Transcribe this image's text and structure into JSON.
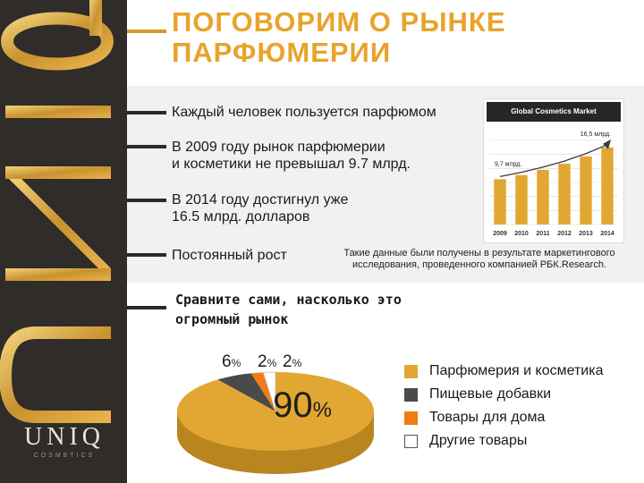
{
  "title": {
    "line1": "ПОГОВОРИМ О РЫНКЕ",
    "line2": "ПАРФЮМЕРИИ"
  },
  "facts": [
    {
      "line1": "Каждый человек пользуется парфюмом",
      "line2": ""
    },
    {
      "line1": "В 2009 году рынок парфюмерии",
      "line2": "и косметики не превышал 9.7 млрд."
    },
    {
      "line1": "В 2014 году достигнул уже",
      "line2": "16.5 млрд. долларов"
    },
    {
      "line1": "Постоянный рост",
      "line2": ""
    }
  ],
  "note": {
    "line1": "Такие данные были получены в результате маркетингового",
    "line2": "исследования, проведенного компанией РБК.Research."
  },
  "chart_data": {
    "type": "bar",
    "title": "Global Cosmetics Market",
    "categories": [
      "2009",
      "2010",
      "2011",
      "2012",
      "2013",
      "2014"
    ],
    "values": [
      9.7,
      10.6,
      11.7,
      13.0,
      14.6,
      16.5
    ],
    "annotations": [
      {
        "category": "2009",
        "text": "9,7 млрд."
      },
      {
        "category": "2014",
        "text": "16,5 млрд."
      }
    ],
    "trend_arrow": true,
    "grid": true,
    "colors": {
      "bar": "#e2a732",
      "arrow": "#3a3a3a"
    }
  },
  "compare": {
    "line1": "Сравните сами, насколько это",
    "line2": "огромный рынок"
  },
  "pie": {
    "slices": [
      {
        "value": "90",
        "unit": "%",
        "label": "Парфюмерия и косметика",
        "color": "#e2a732"
      },
      {
        "value": "6",
        "unit": "%",
        "label": "Пищевые добавки",
        "color": "#4a4a4a"
      },
      {
        "value": "2",
        "unit": "%",
        "label": "Товары для дома",
        "color": "#f07c12"
      },
      {
        "value": "2",
        "unit": "%",
        "label": "Другие товары",
        "color": "#ffffff"
      }
    ]
  },
  "brand": {
    "logo_letters": [
      "U",
      "N",
      "I",
      "Q"
    ],
    "wordmark": "UNIQ",
    "sub": "COSMETICS"
  },
  "colors": {
    "accent": "#e8a32b",
    "sidebar": "#2f2c2a",
    "band": "#f1f1f1"
  }
}
